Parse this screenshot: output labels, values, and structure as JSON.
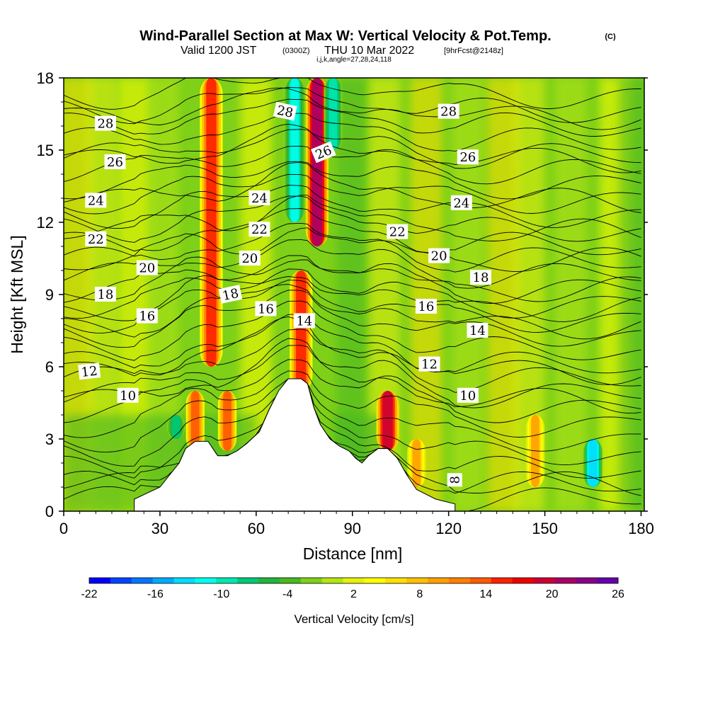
{
  "header": {
    "title": "Wind-Parallel Section at Max W: Vertical Velocity & Pot.Temp.",
    "copyright": "(C)",
    "valid_prefix": "Valid 1200 JST",
    "valid_utc": "(0300Z)",
    "valid_date": "THU 10 Mar 2022",
    "forecast": "[9hrFcst@2148z]",
    "indices": "i,j,k,angle=27,28,24,118"
  },
  "chart_data": {
    "type": "heatmap",
    "xlabel": "Distance [nm]",
    "ylabel": "Height [Kft MSL]",
    "xlim": [
      0,
      181
    ],
    "ylim": [
      0,
      18
    ],
    "x_ticks": [
      0,
      30,
      60,
      90,
      120,
      150,
      180
    ],
    "x_tick_labels": [
      "0",
      "30",
      "60",
      "90",
      "120",
      "150",
      "180"
    ],
    "y_ticks": [
      0,
      3,
      6,
      9,
      12,
      15,
      18
    ],
    "y_tick_labels": [
      "0",
      "3",
      "6",
      "9",
      "12",
      "15",
      "18"
    ],
    "colorbar": {
      "label": "Vertical Velocity [cm/s]",
      "ticks": [
        -22,
        -16,
        -10,
        -4,
        2,
        8,
        14,
        20,
        26
      ],
      "tick_labels": [
        "-22",
        "-16",
        "-10",
        "-4",
        "2",
        "8",
        "14",
        "20",
        "26"
      ],
      "colors": [
        "#0000ff",
        "#0044ff",
        "#0077ff",
        "#00aaff",
        "#00ddff",
        "#00ffee",
        "#00e6b0",
        "#00c878",
        "#22b43c",
        "#4ab820",
        "#7ed018",
        "#b4e414",
        "#e6f00a",
        "#ffff00",
        "#ffe000",
        "#ffc000",
        "#ffa000",
        "#ff8000",
        "#ff5a00",
        "#ff2000",
        "#ee0000",
        "#cc0033",
        "#aa0066",
        "#880088",
        "#6600aa"
      ]
    },
    "terrain": [
      [
        22,
        0.5
      ],
      [
        30,
        1
      ],
      [
        33,
        1.5
      ],
      [
        36,
        2
      ],
      [
        38,
        2.6
      ],
      [
        41,
        2.9
      ],
      [
        45,
        2.9
      ],
      [
        48,
        2.3
      ],
      [
        51,
        2.3
      ],
      [
        54,
        2.5
      ],
      [
        57,
        2.8
      ],
      [
        61,
        3.3
      ],
      [
        64,
        4.2
      ],
      [
        67,
        5
      ],
      [
        70,
        5.5
      ],
      [
        74,
        5.5
      ],
      [
        76,
        5.3
      ],
      [
        78,
        4.3
      ],
      [
        80,
        3.6
      ],
      [
        83,
        3.0
      ],
      [
        86,
        2.7
      ],
      [
        89,
        2.5
      ],
      [
        91,
        2.2
      ],
      [
        93,
        2.0
      ],
      [
        95,
        2.3
      ],
      [
        98,
        2.6
      ],
      [
        101,
        2.6
      ],
      [
        104,
        2.2
      ],
      [
        107,
        1.5
      ],
      [
        110,
        0.9
      ],
      [
        116,
        0.5
      ],
      [
        122,
        0.3
      ]
    ],
    "velocity_features": [
      {
        "x": 46,
        "z0": 6,
        "z1": 18,
        "w": 16
      },
      {
        "x": 79,
        "z0": 11,
        "z1": 18,
        "w": 22
      },
      {
        "x": 74,
        "z0": 5,
        "z1": 10,
        "w": 16
      },
      {
        "x": 101,
        "z0": 2.5,
        "z1": 5,
        "w": 20
      },
      {
        "x": 41,
        "z0": 2.5,
        "z1": 5,
        "w": 14
      },
      {
        "x": 51,
        "z0": 2.5,
        "z1": 5,
        "w": 14
      },
      {
        "x": 72,
        "z0": 12,
        "z1": 18,
        "w": -12
      },
      {
        "x": 84,
        "z0": 15,
        "z1": 18,
        "w": -10
      },
      {
        "x": 165,
        "z0": 1,
        "z1": 3,
        "w": -14
      },
      {
        "x": 35,
        "z0": 3,
        "z1": 4,
        "w": -8
      },
      {
        "x": 147,
        "z0": 1,
        "z1": 4,
        "w": 9
      },
      {
        "x": 110,
        "z0": 1,
        "z1": 3,
        "w": 9
      }
    ],
    "theta_contours": [
      {
        "value": "8",
        "z": 1.1
      },
      {
        "value": "10",
        "z": 4.6
      },
      {
        "value": "12",
        "z": 5.8
      },
      {
        "value": "14",
        "z": 7.7
      },
      {
        "value": "16",
        "z": 8.4
      },
      {
        "value": "18",
        "z": 9.2
      },
      {
        "value": "20",
        "z": 10.4
      },
      {
        "value": "22",
        "z": 11.6
      },
      {
        "value": "24",
        "z": 12.9
      },
      {
        "value": "26",
        "z": 14.6
      },
      {
        "value": "28",
        "z": 16.4
      }
    ],
    "contour_labels": [
      {
        "text": "28",
        "x": 13,
        "z": 16.1,
        "rot": 0
      },
      {
        "text": "26",
        "x": 16,
        "z": 14.5,
        "rot": 0
      },
      {
        "text": "24",
        "x": 10,
        "z": 12.9,
        "rot": 0
      },
      {
        "text": "22",
        "x": 10,
        "z": 11.3,
        "rot": 0
      },
      {
        "text": "20",
        "x": 26,
        "z": 10.1,
        "rot": 0
      },
      {
        "text": "18",
        "x": 13,
        "z": 9.0,
        "rot": 0
      },
      {
        "text": "16",
        "x": 26,
        "z": 8.1,
        "rot": 0
      },
      {
        "text": "12",
        "x": 8,
        "z": 5.8,
        "rot": -6
      },
      {
        "text": "10",
        "x": 20,
        "z": 4.8,
        "rot": 0
      },
      {
        "text": "28",
        "x": 69,
        "z": 16.6,
        "rot": 12
      },
      {
        "text": "26",
        "x": 81,
        "z": 14.9,
        "rot": -22
      },
      {
        "text": "24",
        "x": 61,
        "z": 13.0,
        "rot": 0
      },
      {
        "text": "22",
        "x": 61,
        "z": 11.7,
        "rot": 0
      },
      {
        "text": "20",
        "x": 58,
        "z": 10.5,
        "rot": 0
      },
      {
        "text": "18",
        "x": 52,
        "z": 9.0,
        "rot": -12
      },
      {
        "text": "16",
        "x": 63,
        "z": 8.4,
        "rot": 0
      },
      {
        "text": "14",
        "x": 75,
        "z": 7.9,
        "rot": 0
      },
      {
        "text": "22",
        "x": 104,
        "z": 11.6,
        "rot": 0
      },
      {
        "text": "20",
        "x": 117,
        "z": 10.6,
        "rot": 0
      },
      {
        "text": "18",
        "x": 130,
        "z": 9.7,
        "rot": 0
      },
      {
        "text": "16",
        "x": 113,
        "z": 8.5,
        "rot": 0
      },
      {
        "text": "14",
        "x": 129,
        "z": 7.5,
        "rot": 0
      },
      {
        "text": "12",
        "x": 114,
        "z": 6.1,
        "rot": 0
      },
      {
        "text": "10",
        "x": 126,
        "z": 4.8,
        "rot": 0
      },
      {
        "text": "28",
        "x": 120,
        "z": 16.6,
        "rot": 0
      },
      {
        "text": "26",
        "x": 126,
        "z": 14.7,
        "rot": 0
      },
      {
        "text": "24",
        "x": 124,
        "z": 12.8,
        "rot": 0
      },
      {
        "text": "8",
        "x": 122,
        "z": 1.3,
        "rot": -90
      }
    ]
  }
}
